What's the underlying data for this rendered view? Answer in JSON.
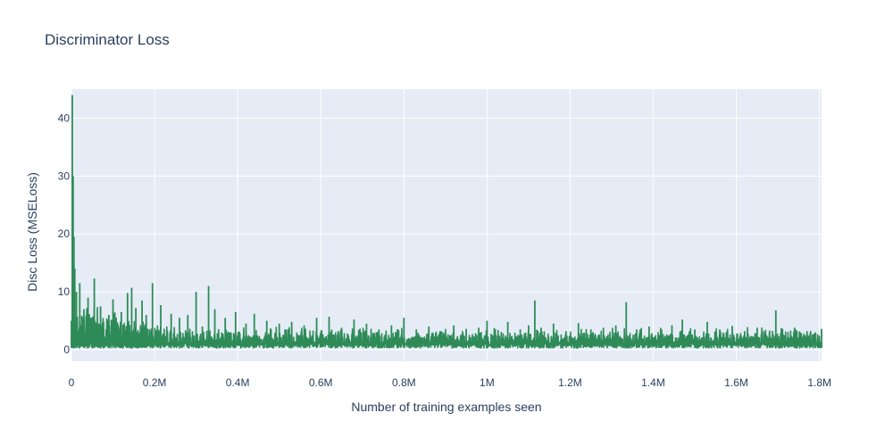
{
  "chart_data": {
    "type": "line",
    "title": "Discriminator Loss",
    "xlabel": "Number of training examples seen",
    "ylabel": "Disc Loss (MSELoss)",
    "xlim": [
      0,
      1805000
    ],
    "ylim": [
      -2,
      45
    ],
    "x_ticks": [
      0,
      200000,
      400000,
      600000,
      800000,
      1000000,
      1200000,
      1400000,
      1600000,
      1800000
    ],
    "x_tick_labels": [
      "0",
      "0.2M",
      "0.4M",
      "0.6M",
      "0.8M",
      "1M",
      "1.2M",
      "1.4M",
      "1.6M",
      "1.8M"
    ],
    "y_ticks": [
      0,
      10,
      20,
      30,
      40
    ],
    "y_tick_labels": [
      "0",
      "10",
      "20",
      "30",
      "40"
    ],
    "grid": true,
    "legend": "none",
    "series": [
      {
        "color": "#2e8b57",
        "x": [
          0,
          2000,
          4000,
          6000,
          8000,
          12000,
          20000,
          30000,
          40000,
          55000,
          70000,
          90000,
          100000,
          120000,
          135000,
          145000,
          155000,
          170000,
          180000,
          195000,
          215000,
          240000,
          260000,
          280000,
          300000,
          315000,
          330000,
          345000,
          370000,
          395000,
          420000,
          440000,
          470000,
          500000,
          530000,
          560000,
          590000,
          620000,
          650000,
          680000,
          710000,
          740000,
          770000,
          800000,
          830000,
          860000,
          890000,
          920000,
          950000,
          980000,
          1000000,
          1020000,
          1050000,
          1080000,
          1100000,
          1115000,
          1130000,
          1160000,
          1190000,
          1220000,
          1250000,
          1280000,
          1310000,
          1335000,
          1360000,
          1390000,
          1420000,
          1445000,
          1470000,
          1500000,
          1530000,
          1560000,
          1590000,
          1620000,
          1650000,
          1680000,
          1695000,
          1710000,
          1740000,
          1770000,
          1790000,
          1805000
        ],
        "values": [
          5,
          44,
          30,
          19.5,
          14,
          10,
          11.5,
          7,
          9,
          12.3,
          7.5,
          6,
          8.7,
          6.5,
          9.8,
          10.7,
          7.2,
          8.5,
          6,
          11.5,
          7.7,
          6.2,
          5.5,
          6,
          10,
          4,
          11,
          7,
          5.5,
          6.5,
          4.5,
          6.2,
          5,
          4.5,
          4.8,
          4.2,
          5.5,
          5.7,
          3.8,
          5.2,
          4.5,
          3.5,
          4.2,
          5.5,
          3.5,
          4,
          3.2,
          4.2,
          3.6,
          3.8,
          5,
          3.5,
          4.8,
          3.5,
          4.2,
          8.5,
          3.8,
          4.5,
          3.2,
          4.6,
          3.5,
          3.8,
          4.2,
          8.2,
          3.5,
          4,
          3.5,
          4.2,
          5.2,
          3.5,
          4.8,
          3.5,
          4.1,
          3.2,
          3.8,
          3.3,
          6.8,
          3.2,
          3.8,
          3.2,
          3,
          3.6
        ]
      }
    ]
  }
}
